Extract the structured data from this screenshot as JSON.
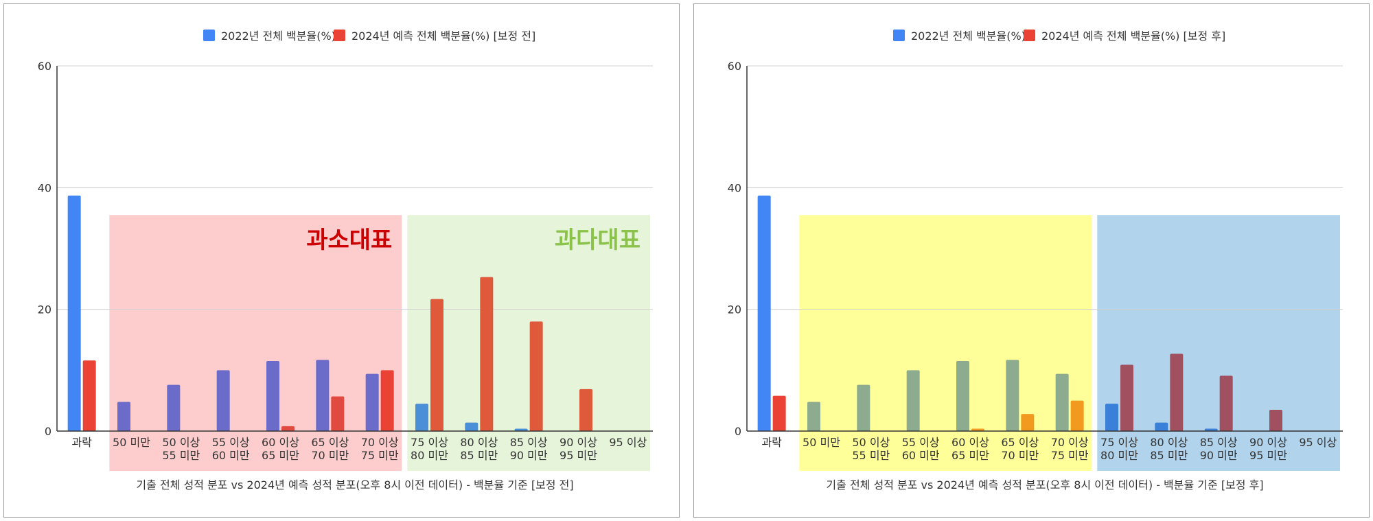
{
  "colors": {
    "series_2022": "#4285f4",
    "series_2024": "#ea4335",
    "left_under_band": "#fdcdcd",
    "left_over_band": "#e6f4da",
    "left_under_label": "#cc0000",
    "left_over_label": "#8bc34a",
    "right_band_1": "#ffff99",
    "right_band_2": "#b1d3ec",
    "gridline": "#d0d0d0"
  },
  "chart_data": [
    {
      "type": "bar",
      "categories": [
        "과락",
        "50 미만",
        "50 이상\n55 미만",
        "55 이상\n60 미만",
        "60 이상\n65 미만",
        "65 이상\n70 미만",
        "70 이상\n75 미만",
        "75 이상\n80 미만",
        "80 이상\n85 미만",
        "85 이상\n90 미만",
        "90 이상\n95 미만",
        "95 이상"
      ],
      "series": [
        {
          "name": "2022년 전체 백분율(%)",
          "values": [
            38.7,
            4.8,
            7.6,
            10.0,
            11.5,
            11.7,
            9.4,
            4.5,
            1.4,
            0.4,
            0.0,
            0.0
          ]
        },
        {
          "name": "2024년 예측 전체 백분율(%) [보정 전]",
          "values": [
            11.6,
            0.0,
            0.0,
            0.0,
            0.8,
            5.7,
            10.0,
            21.7,
            25.3,
            18.0,
            6.9,
            0.0
          ]
        }
      ],
      "bar_colors": {
        "series_0": [
          "#4285f4",
          "#6b6bc9",
          "#6b6bc9",
          "#6b6bc9",
          "#6b6bc9",
          "#6b6bc9",
          "#6b6bc9",
          "#4a8fd8",
          "#4a8fd8",
          "#4a8fd8",
          "#4a8fd8",
          "#4a8fd8"
        ],
        "series_1": [
          "#ea4335",
          "#ea4335",
          "#ea4335",
          "#ea4335",
          "#e04a40",
          "#e04a40",
          "#ea4335",
          "#de5a3a",
          "#de5a3a",
          "#de5a3a",
          "#de5a3a",
          "#de5a3a"
        ]
      },
      "bands": [
        {
          "label": "과소대표",
          "from_category": 1,
          "to_category": 6,
          "color_key": "left_under_band",
          "label_color_key": "left_under_label",
          "label_align": "right",
          "top_value": 35.5
        },
        {
          "label": "과다대표",
          "from_category": 7,
          "to_category": 11,
          "color_key": "left_over_band",
          "label_color_key": "left_over_label",
          "label_align": "right",
          "top_value": 35.5
        }
      ],
      "ylim": [
        0,
        60
      ],
      "yticks": [
        "0",
        "20",
        "40",
        "60"
      ],
      "xlabel": "기출 전체 성적 분포 vs 2024년 예측 성적 분포(오후 8시 이전 데이터) - 백분율 기준 [보정 전]",
      "ylabel": "",
      "legend": "top",
      "grid": true
    },
    {
      "type": "bar",
      "categories": [
        "과락",
        "50 미만",
        "50 이상\n55 미만",
        "55 이상\n60 미만",
        "60 이상\n65 미만",
        "65 이상\n70 미만",
        "70 이상\n75 미만",
        "75 이상\n80 미만",
        "80 이상\n85 미만",
        "85 이상\n90 미만",
        "90 이상\n95 미만",
        "95 이상"
      ],
      "series": [
        {
          "name": "2022년 전체 백분율(%)",
          "values": [
            38.7,
            4.8,
            7.6,
            10.0,
            11.5,
            11.7,
            9.4,
            4.5,
            1.4,
            0.4,
            0.0,
            0.0
          ]
        },
        {
          "name": "2024년 예측 전체 백분율(%) [보정 후]",
          "values": [
            5.8,
            0.0,
            0.0,
            0.0,
            0.4,
            2.8,
            5.0,
            10.9,
            12.7,
            9.1,
            3.5,
            0.0
          ]
        }
      ],
      "bar_colors": {
        "series_0": [
          "#4285f4",
          "#8cab8f",
          "#8cab8f",
          "#8cab8f",
          "#8cab8f",
          "#8cab8f",
          "#8cab8f",
          "#3a7fd8",
          "#3a7fd8",
          "#3a7fd8",
          "#3a7fd8",
          "#3a7fd8"
        ],
        "series_1": [
          "#ea4335",
          "#f29a1f",
          "#f29a1f",
          "#f29a1f",
          "#f29a1f",
          "#f29a1f",
          "#f29a1f",
          "#a0505f",
          "#a0505f",
          "#a0505f",
          "#a0505f",
          "#a0505f"
        ]
      },
      "bands": [
        {
          "label": "",
          "from_category": 1,
          "to_category": 6,
          "color_key": "right_band_1",
          "top_value": 35.5
        },
        {
          "label": "",
          "from_category": 7,
          "to_category": 11,
          "color_key": "right_band_2",
          "top_value": 35.5
        }
      ],
      "ylim": [
        0,
        60
      ],
      "yticks": [
        "0",
        "20",
        "40",
        "60"
      ],
      "xlabel": "기출 전체 성적 분포 vs 2024년 예측 성적 분포(오후 8시 이전 데이터) - 백분율 기준 [보정 후]",
      "ylabel": "",
      "legend": "top",
      "grid": true
    }
  ]
}
